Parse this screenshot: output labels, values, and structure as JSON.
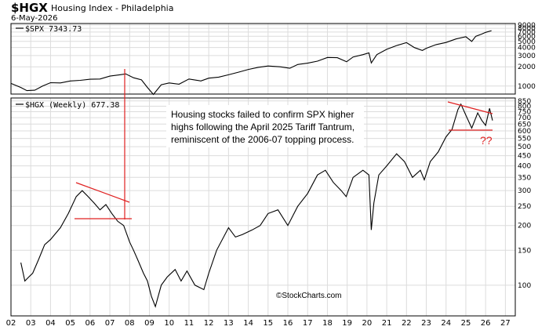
{
  "header": {
    "symbol": "$HGX",
    "name": "Housing Index - Philadelphia",
    "date": "6-May-2026"
  },
  "watermark": "©StockCharts.com",
  "colors": {
    "price": "#000000",
    "annotation": "#e02020",
    "grid": "#dcdcdc",
    "frame": "#000000"
  },
  "chart_data": [
    {
      "type": "line",
      "panel": "top",
      "series_label": "$SPX 7343.73",
      "scale": "log",
      "ylim": [
        750,
        9500
      ],
      "y_ticks": [
        1000,
        2000,
        3000,
        4000,
        5000,
        6000,
        7000,
        8000,
        9000
      ],
      "x_range": [
        2002.0,
        2027.5
      ],
      "series": [
        {
          "x": [
            2002.0,
            2002.5,
            2002.8,
            2003.2,
            2003.6,
            2004.0,
            2004.5,
            2005.0,
            2005.5,
            2006.0,
            2006.5,
            2007.0,
            2007.5,
            2007.8,
            2008.2,
            2008.6,
            2008.9,
            2009.2,
            2009.6,
            2010.0,
            2010.5,
            2011.0,
            2011.6,
            2012.0,
            2012.5,
            2013.0,
            2013.5,
            2014.0,
            2014.5,
            2015.0,
            2015.6,
            2016.1,
            2016.5,
            2017.0,
            2017.5,
            2018.0,
            2018.5,
            2018.97,
            2019.3,
            2019.8,
            2020.1,
            2020.22,
            2020.5,
            2021.0,
            2021.5,
            2022.0,
            2022.4,
            2022.8,
            2023.0,
            2023.5,
            2024.0,
            2024.5,
            2025.0,
            2025.3,
            2025.5,
            2025.8,
            2026.0,
            2026.3
          ],
          "y": [
            1100,
            950,
            850,
            860,
            1000,
            1130,
            1120,
            1200,
            1230,
            1280,
            1290,
            1430,
            1500,
            1550,
            1350,
            1250,
            950,
            740,
            1050,
            1120,
            1070,
            1290,
            1200,
            1330,
            1380,
            1500,
            1650,
            1820,
            1960,
            2060,
            2000,
            1900,
            2170,
            2280,
            2450,
            2800,
            2780,
            2400,
            2850,
            3100,
            3300,
            2300,
            3100,
            3750,
            4300,
            4770,
            4000,
            3600,
            3900,
            4450,
            4800,
            5450,
            5900,
            5000,
            6000,
            6500,
            6900,
            7343.73
          ]
        }
      ]
    },
    {
      "type": "line",
      "panel": "bottom",
      "series_label": "$HGX (Weekly) 677.38",
      "scale": "log",
      "ylim": [
        70,
        880
      ],
      "y_ticks": [
        100,
        150,
        200,
        250,
        300,
        350,
        400,
        450,
        500,
        550,
        600,
        650,
        700,
        750,
        800,
        850
      ],
      "x_range": [
        2002.0,
        2027.5
      ],
      "x_tick_labels": [
        "02",
        "03",
        "04",
        "05",
        "06",
        "07",
        "08",
        "09",
        "10",
        "11",
        "12",
        "13",
        "14",
        "15",
        "16",
        "17",
        "18",
        "19",
        "20",
        "21",
        "22",
        "23",
        "24",
        "25",
        "26",
        "27"
      ],
      "series": [
        {
          "x": [
            2002.5,
            2002.7,
            2002.9,
            2003.1,
            2003.4,
            2003.7,
            2004.0,
            2004.5,
            2004.9,
            2005.3,
            2005.6,
            2005.9,
            2006.2,
            2006.5,
            2006.8,
            2007.1,
            2007.4,
            2007.7,
            2008.0,
            2008.2,
            2008.4,
            2008.7,
            2008.9,
            2009.1,
            2009.3,
            2009.6,
            2009.9,
            2010.3,
            2010.6,
            2010.9,
            2011.3,
            2011.75,
            2012.0,
            2012.4,
            2013.0,
            2013.35,
            2013.7,
            2014.2,
            2014.6,
            2015.0,
            2015.5,
            2016.0,
            2016.5,
            2017.0,
            2017.5,
            2017.9,
            2018.3,
            2018.7,
            2018.95,
            2019.3,
            2019.8,
            2020.1,
            2020.22,
            2020.35,
            2020.6,
            2021.0,
            2021.5,
            2021.9,
            2022.3,
            2022.7,
            2022.9,
            2023.2,
            2023.6,
            2024.0,
            2024.3,
            2024.6,
            2024.75,
            2025.0,
            2025.3,
            2025.6,
            2025.8,
            2026.0,
            2026.2,
            2026.35
          ],
          "y": [
            130,
            105,
            110,
            115,
            135,
            160,
            170,
            195,
            230,
            280,
            300,
            280,
            260,
            240,
            255,
            230,
            210,
            200,
            165,
            150,
            135,
            115,
            105,
            88,
            78,
            100,
            110,
            120,
            105,
            118,
            100,
            95,
            115,
            150,
            195,
            175,
            180,
            190,
            200,
            230,
            240,
            200,
            250,
            290,
            360,
            380,
            330,
            300,
            280,
            350,
            380,
            360,
            190,
            260,
            360,
            400,
            460,
            420,
            350,
            380,
            340,
            420,
            470,
            560,
            610,
            770,
            820,
            720,
            620,
            740,
            680,
            640,
            780,
            677.38
          ]
        }
      ]
    }
  ],
  "annotation": {
    "text_lines": [
      "Housing stocks failed to confirm SPX higher",
      "highs following the April 2025 Tariff Tantrum,",
      "reminiscent of the 2006-07 topping process."
    ],
    "marker": "??"
  }
}
